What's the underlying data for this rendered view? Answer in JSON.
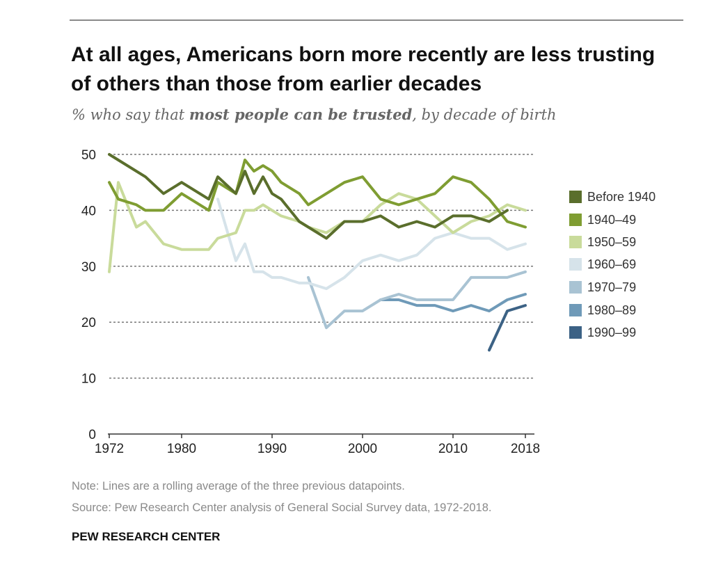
{
  "title": "At all ages, Americans born more recently are less trusting of others than those from earlier decades",
  "subtitle": {
    "pre": "% who say that ",
    "bold": "most people can be trusted",
    "post": ", by decade of birth"
  },
  "note": "Note: Lines are a rolling average of the three previous datapoints.",
  "source": "Source: Pew Research Center analysis of General Social Survey data, 1972-2018.",
  "brand": "PEW RESEARCH CENTER",
  "chart_data": {
    "type": "line",
    "title": "At all ages, Americans born more recently are less trusting of others than those from earlier decades",
    "ylabel": "% who say that most people can be trusted",
    "xlim": [
      1972,
      2018
    ],
    "ylim": [
      0,
      50
    ],
    "x_ticks": [
      "1972",
      "1980",
      "1990",
      "2000",
      "2010",
      "2018"
    ],
    "y_ticks": [
      "0",
      "10",
      "20",
      "30",
      "40",
      "50"
    ],
    "grid": true,
    "legend_position": "right",
    "series": [
      {
        "name": "Before 1940",
        "color": "#5a6e2c",
        "points": [
          [
            1972,
            50
          ],
          [
            1976,
            46
          ],
          [
            1978,
            43
          ],
          [
            1980,
            45
          ],
          [
            1983,
            42
          ],
          [
            1984,
            46
          ],
          [
            1986,
            43
          ],
          [
            1987,
            47
          ],
          [
            1988,
            43
          ],
          [
            1989,
            46
          ],
          [
            1990,
            43
          ],
          [
            1991,
            42
          ],
          [
            1993,
            38
          ],
          [
            1994,
            37
          ],
          [
            1996,
            35
          ],
          [
            1998,
            38
          ],
          [
            2000,
            38
          ],
          [
            2002,
            39
          ],
          [
            2004,
            37
          ],
          [
            2006,
            38
          ],
          [
            2008,
            37
          ],
          [
            2010,
            39
          ],
          [
            2012,
            39
          ],
          [
            2014,
            38
          ],
          [
            2016,
            40
          ]
        ]
      },
      {
        "name": "1940–49",
        "color": "#7f9d32",
        "points": [
          [
            1972,
            45
          ],
          [
            1973,
            42
          ],
          [
            1975,
            41
          ],
          [
            1976,
            40
          ],
          [
            1978,
            40
          ],
          [
            1980,
            43
          ],
          [
            1983,
            40
          ],
          [
            1984,
            45
          ],
          [
            1986,
            43
          ],
          [
            1987,
            49
          ],
          [
            1988,
            47
          ],
          [
            1989,
            48
          ],
          [
            1990,
            47
          ],
          [
            1991,
            45
          ],
          [
            1993,
            43
          ],
          [
            1994,
            41
          ],
          [
            1996,
            43
          ],
          [
            1998,
            45
          ],
          [
            2000,
            46
          ],
          [
            2002,
            42
          ],
          [
            2004,
            41
          ],
          [
            2006,
            42
          ],
          [
            2008,
            43
          ],
          [
            2010,
            46
          ],
          [
            2012,
            45
          ],
          [
            2014,
            42
          ],
          [
            2016,
            38
          ],
          [
            2018,
            37
          ]
        ]
      },
      {
        "name": "1950–59",
        "color": "#c9db9b",
        "points": [
          [
            1972,
            29
          ],
          [
            1973,
            45
          ],
          [
            1975,
            37
          ],
          [
            1976,
            38
          ],
          [
            1978,
            34
          ],
          [
            1980,
            33
          ],
          [
            1983,
            33
          ],
          [
            1984,
            35
          ],
          [
            1986,
            36
          ],
          [
            1987,
            40
          ],
          [
            1988,
            40
          ],
          [
            1989,
            41
          ],
          [
            1990,
            40
          ],
          [
            1991,
            39
          ],
          [
            1993,
            38
          ],
          [
            1994,
            37
          ],
          [
            1996,
            36
          ],
          [
            1998,
            38
          ],
          [
            2000,
            38
          ],
          [
            2002,
            41
          ],
          [
            2004,
            43
          ],
          [
            2006,
            42
          ],
          [
            2008,
            39
          ],
          [
            2010,
            36
          ],
          [
            2012,
            38
          ],
          [
            2014,
            39
          ],
          [
            2016,
            41
          ],
          [
            2018,
            40
          ]
        ]
      },
      {
        "name": "1960–69",
        "color": "#d6e3ea",
        "points": [
          [
            1984,
            42
          ],
          [
            1986,
            31
          ],
          [
            1987,
            34
          ],
          [
            1988,
            29
          ],
          [
            1989,
            29
          ],
          [
            1990,
            28
          ],
          [
            1991,
            28
          ],
          [
            1993,
            27
          ],
          [
            1994,
            27
          ],
          [
            1996,
            26
          ],
          [
            1998,
            28
          ],
          [
            2000,
            31
          ],
          [
            2002,
            32
          ],
          [
            2004,
            31
          ],
          [
            2006,
            32
          ],
          [
            2008,
            35
          ],
          [
            2010,
            36
          ],
          [
            2012,
            35
          ],
          [
            2014,
            35
          ],
          [
            2016,
            33
          ],
          [
            2018,
            34
          ]
        ]
      },
      {
        "name": "1970–79",
        "color": "#a9c3d3",
        "points": [
          [
            1994,
            28
          ],
          [
            1996,
            19
          ],
          [
            1998,
            22
          ],
          [
            2000,
            22
          ],
          [
            2002,
            24
          ],
          [
            2004,
            25
          ],
          [
            2006,
            24
          ],
          [
            2008,
            24
          ],
          [
            2010,
            24
          ],
          [
            2012,
            28
          ],
          [
            2014,
            28
          ],
          [
            2016,
            28
          ],
          [
            2018,
            29
          ]
        ]
      },
      {
        "name": "1980–89",
        "color": "#6f9ab8",
        "points": [
          [
            2002,
            24
          ],
          [
            2004,
            24
          ],
          [
            2006,
            23
          ],
          [
            2008,
            23
          ],
          [
            2010,
            22
          ],
          [
            2012,
            23
          ],
          [
            2014,
            22
          ],
          [
            2016,
            24
          ],
          [
            2018,
            25
          ]
        ]
      },
      {
        "name": "1990–99",
        "color": "#3c6285",
        "points": [
          [
            2014,
            15
          ],
          [
            2016,
            22
          ],
          [
            2018,
            23
          ]
        ]
      }
    ]
  }
}
